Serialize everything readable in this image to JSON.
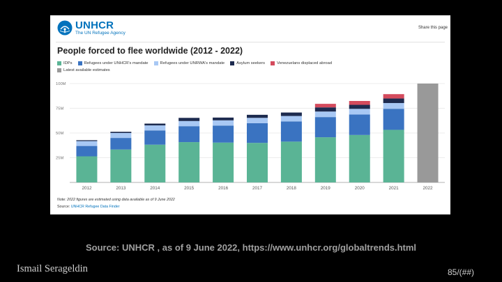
{
  "logo": {
    "name": "UNHCR",
    "tagline": "The UN Refugee Agency"
  },
  "share_label": "Share this page",
  "colors": {
    "idps": "#5ab495",
    "unhcr_refugees": "#3a73c1",
    "unrwa_refugees": "#a8c8f4",
    "asylum": "#1d2b4f",
    "venezuelans": "#d44b5d",
    "latest": "#999999"
  },
  "chart_data": {
    "type": "bar",
    "title": "People forced to flee worldwide (2012 - 2022)",
    "categories": [
      "2012",
      "2013",
      "2014",
      "2015",
      "2016",
      "2017",
      "2018",
      "2019",
      "2020",
      "2021",
      "2022"
    ],
    "ylim": [
      0,
      100
    ],
    "yticks": [
      25,
      50,
      75,
      100
    ],
    "ytick_labels": [
      "25M",
      "50M",
      "75M",
      "100M"
    ],
    "stacked": true,
    "series": [
      {
        "name": "IDPs",
        "color_key": "idps",
        "values": [
          26.4,
          33.3,
          38.2,
          40.8,
          40.3,
          40.0,
          41.3,
          45.7,
          48.0,
          53.2,
          null
        ]
      },
      {
        "name": "Refugees under UNHCR's mandate",
        "color_key": "unhcr_refugees",
        "values": [
          10.5,
          11.7,
          14.4,
          16.1,
          17.2,
          19.9,
          20.4,
          20.4,
          20.7,
          21.3,
          null
        ]
      },
      {
        "name": "Refugees under UNRWA's mandate",
        "color_key": "unrwa_refugees",
        "values": [
          4.9,
          5.0,
          5.1,
          5.2,
          5.3,
          5.4,
          5.5,
          5.6,
          5.7,
          5.8,
          null
        ]
      },
      {
        "name": "Asylum seekers",
        "color_key": "asylum",
        "values": [
          0.9,
          1.2,
          1.8,
          3.2,
          2.8,
          3.1,
          3.5,
          4.2,
          4.1,
          4.6,
          null
        ]
      },
      {
        "name": "Venezuelans displaced abroad",
        "color_key": "venezuelans",
        "values": [
          0,
          0,
          0,
          0,
          0,
          0,
          0,
          3.6,
          3.9,
          4.4,
          null
        ]
      },
      {
        "name": "Latest available estimates",
        "color_key": "latest",
        "values": [
          null,
          null,
          null,
          null,
          null,
          null,
          null,
          null,
          null,
          null,
          100
        ]
      }
    ],
    "note": "Note: 2022 figures are estimated using data available as of 9 June 2022",
    "source_prefix": "Source: ",
    "source_link": "UNHCR Refugee Data Finder"
  },
  "caption": "Source:  UNHCR , as of 9 June 2022, https://www.unhcr.org/globaltrends.html",
  "author": "Ismail Serageldin",
  "page_number": "85/(##)"
}
